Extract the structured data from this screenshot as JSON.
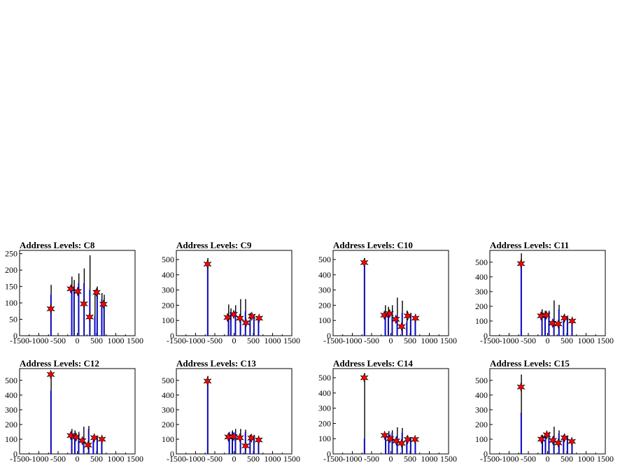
{
  "chart_data": [
    {
      "type": "bar",
      "title": "Address Levels: C8",
      "xlim": [
        -1500,
        1500
      ],
      "ylim": [
        0,
        260
      ],
      "xticks": [
        -1500,
        -1000,
        -500,
        0,
        500,
        1000,
        1500
      ],
      "yticks": [
        0,
        50,
        100,
        150,
        200,
        250
      ],
      "series": [
        {
          "style": "black-spikes",
          "values": [
            [
              -680,
              155
            ],
            [
              -140,
              180
            ],
            [
              -80,
              170
            ],
            [
              40,
              190
            ],
            [
              180,
              205
            ],
            [
              330,
              245
            ],
            [
              460,
              140
            ],
            [
              520,
              150
            ],
            [
              640,
              130
            ],
            [
              700,
              125
            ]
          ]
        },
        {
          "style": "blue-spikes",
          "values": [
            [
              -690,
              125
            ],
            [
              -150,
              140
            ],
            [
              -90,
              150
            ],
            [
              30,
              160
            ],
            [
              170,
              160
            ],
            [
              320,
              140
            ],
            [
              450,
              60
            ],
            [
              510,
              130
            ],
            [
              630,
              110
            ],
            [
              690,
              100
            ]
          ]
        },
        {
          "style": "red-stars",
          "values": [
            [
              -690,
              82
            ],
            [
              -170,
              143
            ],
            [
              10,
              135
            ],
            [
              170,
              97
            ],
            [
              320,
              57
            ],
            [
              500,
              132
            ],
            [
              680,
              96
            ]
          ]
        }
      ]
    },
    {
      "type": "bar",
      "title": "Address Levels: C9",
      "xlim": [
        -1500,
        1500
      ],
      "ylim": [
        0,
        560
      ],
      "xticks": [
        -1500,
        -1000,
        -500,
        0,
        500,
        1000,
        1500
      ],
      "yticks": [
        0,
        100,
        200,
        300,
        400,
        500
      ],
      "series": [
        {
          "style": "black-spikes",
          "values": [
            [
              -680,
              510
            ],
            [
              -140,
              205
            ],
            [
              -80,
              180
            ],
            [
              40,
              200
            ],
            [
              170,
              240
            ],
            [
              300,
              240
            ],
            [
              420,
              150
            ],
            [
              520,
              140
            ],
            [
              640,
              130
            ]
          ]
        },
        {
          "style": "blue-spikes",
          "values": [
            [
              -690,
              480
            ],
            [
              -150,
              110
            ],
            [
              -90,
              150
            ],
            [
              30,
              160
            ],
            [
              160,
              130
            ],
            [
              290,
              160
            ],
            [
              410,
              100
            ],
            [
              510,
              120
            ],
            [
              630,
              110
            ]
          ]
        },
        {
          "style": "red-stars",
          "values": [
            [
              -690,
              470
            ],
            [
              -170,
              120
            ],
            [
              -10,
              140
            ],
            [
              150,
              115
            ],
            [
              310,
              85
            ],
            [
              460,
              128
            ],
            [
              650,
              115
            ]
          ]
        }
      ]
    },
    {
      "type": "bar",
      "title": "Address Levels: C10",
      "xlim": [
        -1500,
        1500
      ],
      "ylim": [
        0,
        560
      ],
      "xticks": [
        -1500,
        -1000,
        -500,
        0,
        500,
        1000,
        1500
      ],
      "yticks": [
        0,
        100,
        200,
        300,
        400,
        500
      ],
      "series": [
        {
          "style": "black-spikes",
          "values": [
            [
              -680,
              510
            ],
            [
              -140,
              200
            ],
            [
              -60,
              190
            ],
            [
              40,
              200
            ],
            [
              170,
              250
            ],
            [
              300,
              230
            ],
            [
              420,
              165
            ],
            [
              520,
              150
            ],
            [
              640,
              140
            ]
          ]
        },
        {
          "style": "blue-spikes",
          "values": [
            [
              -690,
              490
            ],
            [
              -150,
              140
            ],
            [
              -70,
              140
            ],
            [
              30,
              150
            ],
            [
              160,
              130
            ],
            [
              290,
              150
            ],
            [
              410,
              90
            ],
            [
              510,
              130
            ],
            [
              630,
              110
            ]
          ]
        },
        {
          "style": "red-stars",
          "values": [
            [
              -690,
              480
            ],
            [
              -170,
              135
            ],
            [
              -30,
              145
            ],
            [
              130,
              108
            ],
            [
              280,
              60
            ],
            [
              440,
              130
            ],
            [
              640,
              115
            ]
          ]
        }
      ]
    },
    {
      "type": "bar",
      "title": "Address Levels: C11",
      "xlim": [
        -1500,
        1500
      ],
      "ylim": [
        0,
        580
      ],
      "xticks": [
        -1500,
        -1000,
        -500,
        0,
        500,
        1000,
        1500
      ],
      "yticks": [
        0,
        100,
        200,
        300,
        400,
        500
      ],
      "series": [
        {
          "style": "black-spikes",
          "values": [
            [
              -680,
              560
            ],
            [
              -140,
              180
            ],
            [
              -60,
              170
            ],
            [
              40,
              170
            ],
            [
              170,
              240
            ],
            [
              300,
              210
            ],
            [
              420,
              140
            ],
            [
              520,
              135
            ],
            [
              640,
              120
            ]
          ]
        },
        {
          "style": "blue-spikes",
          "values": [
            [
              -690,
              500
            ],
            [
              -150,
              140
            ],
            [
              -70,
              150
            ],
            [
              30,
              160
            ],
            [
              160,
              120
            ],
            [
              290,
              180
            ],
            [
              410,
              100
            ],
            [
              510,
              120
            ],
            [
              630,
              110
            ]
          ]
        },
        {
          "style": "red-stars",
          "values": [
            [
              -690,
              490
            ],
            [
              -170,
              135
            ],
            [
              -30,
              140
            ],
            [
              130,
              85
            ],
            [
              280,
              80
            ],
            [
              440,
              120
            ],
            [
              640,
              100
            ]
          ]
        }
      ]
    },
    {
      "type": "bar",
      "title": "Address Levels: C12",
      "xlim": [
        -1500,
        1500
      ],
      "ylim": [
        0,
        580
      ],
      "xticks": [
        -1500,
        -1000,
        -500,
        0,
        500,
        1000,
        1500
      ],
      "yticks": [
        0,
        100,
        200,
        300,
        400,
        500
      ],
      "series": [
        {
          "style": "black-spikes",
          "values": [
            [
              -680,
              560
            ],
            [
              -140,
              170
            ],
            [
              -60,
              160
            ],
            [
              40,
              150
            ],
            [
              170,
              185
            ],
            [
              300,
              190
            ],
            [
              420,
              125
            ],
            [
              520,
              120
            ],
            [
              640,
              110
            ]
          ]
        },
        {
          "style": "blue-spikes",
          "values": [
            [
              -690,
              430
            ],
            [
              -150,
              150
            ],
            [
              -70,
              140
            ],
            [
              30,
              130
            ],
            [
              160,
              110
            ],
            [
              290,
              170
            ],
            [
              410,
              90
            ],
            [
              510,
              110
            ],
            [
              630,
              100
            ]
          ]
        },
        {
          "style": "red-stars",
          "values": [
            [
              -690,
              540
            ],
            [
              -170,
              125
            ],
            [
              -30,
              115
            ],
            [
              130,
              90
            ],
            [
              280,
              60
            ],
            [
              440,
              110
            ],
            [
              640,
              100
            ]
          ]
        }
      ]
    },
    {
      "type": "bar",
      "title": "Address Levels: C13",
      "xlim": [
        -1500,
        1500
      ],
      "ylim": [
        0,
        580
      ],
      "xticks": [
        -1500,
        -1000,
        -500,
        0,
        500,
        1000,
        1500
      ],
      "yticks": [
        0,
        100,
        200,
        300,
        400,
        500
      ],
      "series": [
        {
          "style": "black-spikes",
          "values": [
            [
              -680,
              530
            ],
            [
              -120,
              150
            ],
            [
              -40,
              160
            ],
            [
              40,
              170
            ],
            [
              170,
              170
            ],
            [
              300,
              165
            ],
            [
              420,
              130
            ],
            [
              520,
              130
            ],
            [
              640,
              110
            ]
          ]
        },
        {
          "style": "blue-spikes",
          "values": [
            [
              -690,
              470
            ],
            [
              -130,
              140
            ],
            [
              -50,
              150
            ],
            [
              30,
              150
            ],
            [
              160,
              140
            ],
            [
              290,
              150
            ],
            [
              410,
              100
            ],
            [
              510,
              120
            ],
            [
              630,
              100
            ]
          ]
        },
        {
          "style": "red-stars",
          "values": [
            [
              -690,
              495
            ],
            [
              -150,
              115
            ],
            [
              -10,
              118
            ],
            [
              150,
              110
            ],
            [
              300,
              55
            ],
            [
              450,
              108
            ],
            [
              640,
              95
            ]
          ]
        }
      ]
    },
    {
      "type": "bar",
      "title": "Address Levels: C14",
      "xlim": [
        -1500,
        1500
      ],
      "ylim": [
        0,
        560
      ],
      "xticks": [
        -1500,
        -1000,
        -500,
        0,
        500,
        1000,
        1500
      ],
      "yticks": [
        0,
        100,
        200,
        300,
        400,
        500
      ],
      "series": [
        {
          "style": "black-spikes",
          "values": [
            [
              -680,
              530
            ],
            [
              -130,
              135
            ],
            [
              -50,
              150
            ],
            [
              40,
              155
            ],
            [
              170,
              175
            ],
            [
              300,
              170
            ],
            [
              420,
              120
            ],
            [
              520,
              110
            ],
            [
              640,
              105
            ]
          ]
        },
        {
          "style": "blue-spikes",
          "values": [
            [
              -690,
              100
            ],
            [
              -140,
              120
            ],
            [
              -60,
              130
            ],
            [
              30,
              140
            ],
            [
              160,
              120
            ],
            [
              290,
              140
            ],
            [
              410,
              100
            ],
            [
              510,
              110
            ],
            [
              630,
              100
            ]
          ]
        },
        {
          "style": "red-stars",
          "values": [
            [
              -690,
              500
            ],
            [
              -160,
              122
            ],
            [
              -20,
              100
            ],
            [
              140,
              85
            ],
            [
              280,
              70
            ],
            [
              440,
              95
            ],
            [
              630,
              95
            ]
          ]
        }
      ]
    },
    {
      "type": "bar",
      "title": "Address Levels: C15",
      "xlim": [
        -1500,
        1500
      ],
      "ylim": [
        0,
        580
      ],
      "xticks": [
        -1500,
        -1000,
        -500,
        0,
        500,
        1000,
        1500
      ],
      "yticks": [
        0,
        100,
        200,
        300,
        400,
        500
      ],
      "series": [
        {
          "style": "black-spikes",
          "values": [
            [
              -680,
              540
            ],
            [
              -130,
              130
            ],
            [
              -50,
              140
            ],
            [
              40,
              150
            ],
            [
              170,
              185
            ],
            [
              300,
              160
            ],
            [
              420,
              130
            ],
            [
              520,
              120
            ],
            [
              640,
              100
            ]
          ]
        },
        {
          "style": "blue-spikes",
          "values": [
            [
              -690,
              280
            ],
            [
              -140,
              110
            ],
            [
              -60,
              130
            ],
            [
              30,
              120
            ],
            [
              160,
              120
            ],
            [
              290,
              140
            ],
            [
              410,
              100
            ],
            [
              510,
              110
            ],
            [
              630,
              95
            ]
          ]
        },
        {
          "style": "red-stars",
          "values": [
            [
              -690,
              455
            ],
            [
              -160,
              100
            ],
            [
              -20,
              130
            ],
            [
              140,
              92
            ],
            [
              280,
              75
            ],
            [
              440,
              110
            ],
            [
              630,
              85
            ]
          ]
        }
      ]
    }
  ],
  "colors": {
    "frame": "#000000",
    "spikes_black": "#000000",
    "spikes_blue": "#0000ff",
    "stars": "#ff0000",
    "star_outline": "#000000"
  }
}
